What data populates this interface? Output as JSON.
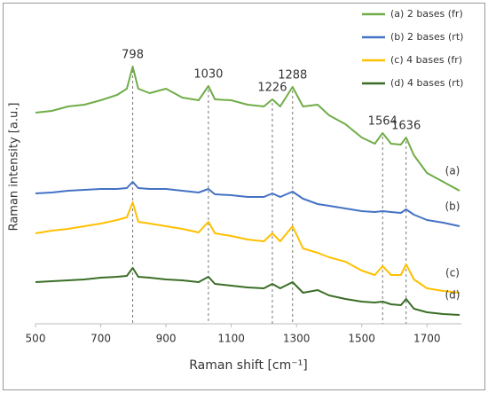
{
  "chart_data": {
    "type": "line",
    "xlabel": "Raman shift [cm⁻¹]",
    "ylabel": "Raman intensity [a.u.]",
    "x": [
      500,
      550,
      600,
      650,
      700,
      750,
      780,
      798,
      815,
      850,
      900,
      950,
      1000,
      1030,
      1050,
      1100,
      1150,
      1200,
      1226,
      1250,
      1288,
      1320,
      1365,
      1400,
      1450,
      1500,
      1540,
      1564,
      1590,
      1620,
      1636,
      1660,
      1700,
      1750,
      1800
    ],
    "series": [
      {
        "name": "(a) 2 bases (fr)",
        "color": "#70ad47",
        "values": [
          238,
          240,
          245,
          247,
          252,
          258,
          265,
          290,
          265,
          260,
          265,
          255,
          252,
          268,
          253,
          252,
          247,
          245,
          253,
          245,
          267,
          245,
          247,
          235,
          225,
          210,
          203,
          215,
          203,
          202,
          210,
          190,
          170,
          160,
          150
        ]
      },
      {
        "name": "(b) 2 bases (rt)",
        "color": "#4472c4",
        "values": [
          147,
          148,
          150,
          151,
          152,
          152,
          153,
          160,
          153,
          152,
          152,
          150,
          148,
          152,
          146,
          145,
          143,
          143,
          147,
          143,
          149,
          141,
          135,
          133,
          130,
          127,
          126,
          127,
          126,
          125,
          129,
          123,
          117,
          114,
          110
        ]
      },
      {
        "name": "(c) 4 bases (fr)",
        "color": "#ffc000",
        "values": [
          102,
          105,
          107,
          110,
          113,
          117,
          120,
          137,
          115,
          113,
          110,
          107,
          103,
          115,
          102,
          99,
          95,
          93,
          102,
          93,
          110,
          85,
          80,
          75,
          70,
          60,
          55,
          65,
          55,
          55,
          67,
          50,
          40,
          37,
          35
        ]
      },
      {
        "name": "(d) 4 bases (rt)",
        "color": "#3a6e26",
        "values": [
          47,
          48,
          49,
          50,
          52,
          53,
          54,
          63,
          53,
          52,
          50,
          49,
          47,
          53,
          45,
          43,
          41,
          40,
          45,
          40,
          47,
          35,
          38,
          32,
          28,
          25,
          24,
          25,
          22,
          21,
          28,
          17,
          13,
          11,
          10
        ]
      }
    ],
    "curve_labels": [
      "(a)",
      "(b)",
      "(c)",
      "(d)"
    ],
    "peaks": [
      798,
      1030,
      1226,
      1288,
      1564,
      1636
    ],
    "xlim": [
      500,
      1800
    ],
    "xticks": [
      500,
      700,
      900,
      1100,
      1300,
      1500,
      1700
    ],
    "ylim": [
      0,
      355
    ],
    "legend": "top-right"
  }
}
